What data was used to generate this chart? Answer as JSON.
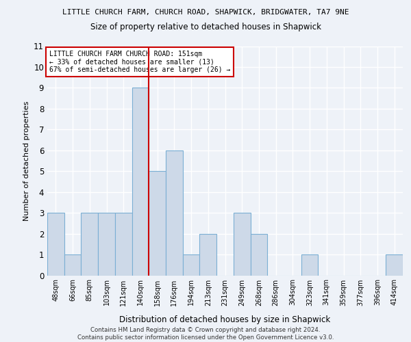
{
  "title1": "LITTLE CHURCH FARM, CHURCH ROAD, SHAPWICK, BRIDGWATER, TA7 9NE",
  "title2": "Size of property relative to detached houses in Shapwick",
  "xlabel": "Distribution of detached houses by size in Shapwick",
  "ylabel": "Number of detached properties",
  "bins": [
    "48sqm",
    "66sqm",
    "85sqm",
    "103sqm",
    "121sqm",
    "140sqm",
    "158sqm",
    "176sqm",
    "194sqm",
    "213sqm",
    "231sqm",
    "249sqm",
    "268sqm",
    "286sqm",
    "304sqm",
    "323sqm",
    "341sqm",
    "359sqm",
    "377sqm",
    "396sqm",
    "414sqm"
  ],
  "values": [
    3,
    1,
    3,
    3,
    3,
    9,
    5,
    6,
    1,
    2,
    0,
    3,
    2,
    0,
    0,
    1,
    0,
    0,
    0,
    0,
    1
  ],
  "bar_color": "#cdd9e8",
  "bar_edge_color": "#7bafd4",
  "ref_line_x": 5.5,
  "ref_line_color": "#cc0000",
  "ylim": [
    0,
    11
  ],
  "yticks": [
    0,
    1,
    2,
    3,
    4,
    5,
    6,
    7,
    8,
    9,
    10,
    11
  ],
  "annotation_text": "LITTLE CHURCH FARM CHURCH ROAD: 151sqm\n← 33% of detached houses are smaller (13)\n67% of semi-detached houses are larger (26) →",
  "annotation_box_color": "#ffffff",
  "annotation_box_edge": "#cc0000",
  "footnote": "Contains HM Land Registry data © Crown copyright and database right 2024.\nContains public sector information licensed under the Open Government Licence v3.0.",
  "bg_color": "#eef2f8",
  "grid_color": "#ffffff",
  "fig_bg": "#eef2f8"
}
